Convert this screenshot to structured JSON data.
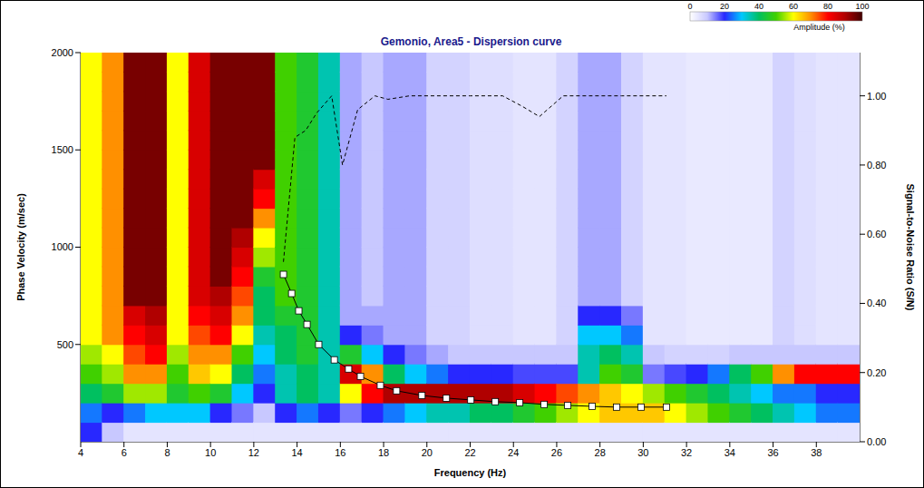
{
  "chart_data": {
    "type": "heatmap",
    "title": "Gemonio, Area5 - Dispersion curve",
    "x_label": "Frequency (Hz)",
    "y_label": "Phase Velocity (m/sec)",
    "y2_label": "Signal-to-Noise Ratio (S/N)",
    "xlim": [
      4,
      40
    ],
    "xticks": [
      4,
      6,
      8,
      10,
      12,
      14,
      16,
      18,
      20,
      22,
      24,
      26,
      28,
      30,
      32,
      34,
      36,
      38
    ],
    "ylim": [
      0,
      2000
    ],
    "yticks": [
      500,
      1000,
      1500,
      2000
    ],
    "y2lim": [
      0,
      1.125
    ],
    "y2ticks": [
      {
        "value": 0,
        "label": "0.00"
      },
      {
        "value": 0.2,
        "label": "0.20"
      },
      {
        "value": 0.4,
        "label": "0.40"
      },
      {
        "value": 0.6,
        "label": "0.60"
      },
      {
        "value": 0.8,
        "label": "0.80"
      },
      {
        "value": 1,
        "label": "1.00"
      }
    ],
    "grid": false,
    "heatmap": {
      "x_edges": [
        4,
        5,
        6,
        7,
        8,
        9,
        10,
        11,
        12,
        13,
        14,
        15,
        16,
        17,
        18,
        19,
        20,
        21,
        22,
        23,
        24,
        25,
        26,
        27,
        28,
        29,
        30,
        31,
        32,
        33,
        34,
        35,
        36,
        37,
        38,
        39,
        40
      ],
      "y_edges": [
        0,
        100,
        200,
        300,
        400,
        500,
        600,
        700,
        800,
        900,
        1000,
        1100,
        1200,
        1300,
        1400,
        1500,
        1600,
        1700,
        1800,
        1900,
        2000
      ],
      "cells": [
        [
          20,
          25,
          40,
          50,
          55,
          60,
          60,
          60,
          60,
          60,
          60,
          60,
          60,
          60,
          60,
          60,
          60,
          60,
          60,
          60
        ],
        [
          10,
          20,
          45,
          55,
          60,
          70,
          70,
          70,
          70,
          70,
          70,
          70,
          70,
          70,
          70,
          70,
          70,
          70,
          70,
          70
        ],
        [
          5,
          25,
          55,
          70,
          75,
          80,
          85,
          95,
          95,
          95,
          95,
          95,
          95,
          95,
          95,
          95,
          95,
          95,
          95,
          95
        ],
        [
          5,
          30,
          55,
          70,
          80,
          85,
          90,
          95,
          95,
          95,
          95,
          95,
          95,
          95,
          95,
          95,
          95,
          95,
          95,
          95
        ],
        [
          5,
          30,
          45,
          50,
          55,
          60,
          60,
          60,
          60,
          60,
          60,
          60,
          60,
          60,
          60,
          60,
          60,
          60,
          60,
          60
        ],
        [
          5,
          30,
          50,
          65,
          70,
          75,
          80,
          85,
          85,
          85,
          85,
          85,
          85,
          85,
          85,
          85,
          85,
          85,
          85,
          85
        ],
        [
          5,
          20,
          45,
          60,
          70,
          80,
          85,
          90,
          95,
          95,
          95,
          95,
          95,
          95,
          95,
          95,
          95,
          95,
          95,
          95
        ],
        [
          5,
          15,
          30,
          40,
          50,
          60,
          70,
          75,
          80,
          85,
          90,
          95,
          95,
          95,
          95,
          95,
          95,
          95,
          95,
          95
        ],
        [
          5,
          10,
          20,
          25,
          30,
          35,
          40,
          40,
          45,
          55,
          60,
          70,
          80,
          85,
          95,
          95,
          95,
          95,
          95,
          95
        ],
        [
          5,
          20,
          35,
          35,
          40,
          40,
          45,
          50,
          50,
          50,
          50,
          50,
          50,
          50,
          50,
          50,
          50,
          50,
          50,
          50
        ],
        [
          5,
          25,
          40,
          40,
          45,
          45,
          45,
          45,
          45,
          45,
          45,
          45,
          45,
          45,
          45,
          45,
          45,
          45,
          45,
          45
        ],
        [
          5,
          20,
          35,
          35,
          35,
          35,
          35,
          35,
          35,
          35,
          35,
          35,
          35,
          35,
          35,
          35,
          35,
          35,
          35,
          35
        ],
        [
          5,
          15,
          60,
          85,
          45,
          20,
          12,
          12,
          12,
          12,
          12,
          12,
          12,
          12,
          12,
          12,
          12,
          12,
          12,
          12
        ],
        [
          5,
          20,
          80,
          70,
          30,
          15,
          12,
          10,
          10,
          10,
          10,
          10,
          10,
          10,
          10,
          10,
          10,
          10,
          10,
          10
        ],
        [
          5,
          25,
          90,
          40,
          20,
          12,
          12,
          12,
          12,
          12,
          12,
          12,
          12,
          12,
          12,
          12,
          12,
          12,
          12,
          12
        ],
        [
          5,
          30,
          90,
          30,
          15,
          12,
          12,
          12,
          12,
          12,
          12,
          12,
          12,
          12,
          12,
          12,
          12,
          12,
          12,
          12
        ],
        [
          5,
          35,
          90,
          25,
          12,
          8,
          8,
          8,
          8,
          8,
          8,
          8,
          8,
          8,
          8,
          8,
          8,
          8,
          8,
          8
        ],
        [
          5,
          35,
          90,
          20,
          10,
          8,
          8,
          8,
          8,
          8,
          8,
          8,
          8,
          8,
          8,
          8,
          8,
          8,
          8,
          8
        ],
        [
          5,
          40,
          90,
          20,
          10,
          6,
          6,
          6,
          6,
          6,
          6,
          6,
          6,
          6,
          6,
          6,
          6,
          6,
          6,
          6
        ],
        [
          5,
          40,
          90,
          20,
          10,
          6,
          6,
          6,
          6,
          6,
          6,
          6,
          6,
          6,
          6,
          6,
          6,
          6,
          6,
          6
        ],
        [
          5,
          45,
          85,
          18,
          10,
          5,
          5,
          5,
          5,
          5,
          5,
          5,
          5,
          5,
          5,
          5,
          5,
          5,
          5,
          5
        ],
        [
          5,
          50,
          80,
          18,
          10,
          5,
          5,
          5,
          5,
          5,
          5,
          5,
          5,
          5,
          5,
          5,
          5,
          5,
          5,
          5
        ],
        [
          5,
          55,
          75,
          18,
          10,
          8,
          8,
          8,
          8,
          8,
          8,
          8,
          8,
          8,
          8,
          8,
          8,
          8,
          8,
          8
        ],
        [
          5,
          60,
          70,
          35,
          35,
          30,
          20,
          12,
          12,
          12,
          12,
          12,
          12,
          12,
          12,
          12,
          12,
          12,
          12,
          12
        ],
        [
          5,
          65,
          65,
          50,
          40,
          30,
          20,
          12,
          12,
          12,
          12,
          12,
          12,
          12,
          12,
          12,
          12,
          12,
          12,
          12
        ],
        [
          5,
          65,
          60,
          45,
          35,
          25,
          15,
          8,
          8,
          8,
          8,
          8,
          8,
          8,
          8,
          8,
          8,
          8,
          8,
          8
        ],
        [
          5,
          65,
          55,
          15,
          10,
          5,
          5,
          5,
          5,
          5,
          5,
          5,
          5,
          5,
          5,
          5,
          5,
          5,
          5,
          5
        ],
        [
          5,
          60,
          50,
          18,
          8,
          5,
          5,
          5,
          5,
          5,
          5,
          5,
          5,
          5,
          5,
          5,
          5,
          5,
          5,
          5
        ],
        [
          5,
          55,
          45,
          20,
          8,
          4,
          4,
          4,
          4,
          4,
          4,
          4,
          4,
          4,
          4,
          4,
          4,
          4,
          4,
          4
        ],
        [
          5,
          50,
          40,
          25,
          8,
          4,
          4,
          4,
          4,
          4,
          4,
          4,
          4,
          4,
          4,
          4,
          4,
          4,
          4,
          4
        ],
        [
          5,
          45,
          35,
          40,
          10,
          4,
          4,
          4,
          4,
          4,
          4,
          4,
          4,
          4,
          4,
          4,
          4,
          4,
          4,
          4
        ],
        [
          5,
          40,
          30,
          50,
          10,
          4,
          4,
          4,
          4,
          4,
          4,
          4,
          4,
          4,
          4,
          4,
          4,
          4,
          4,
          4
        ],
        [
          5,
          35,
          25,
          70,
          10,
          8,
          8,
          8,
          8,
          8,
          8,
          8,
          8,
          8,
          8,
          8,
          8,
          8,
          8,
          8
        ],
        [
          5,
          30,
          25,
          80,
          10,
          6,
          6,
          6,
          6,
          6,
          6,
          6,
          6,
          6,
          6,
          6,
          6,
          6,
          6,
          6
        ],
        [
          5,
          25,
          20,
          80,
          10,
          5,
          5,
          5,
          5,
          5,
          5,
          5,
          5,
          5,
          5,
          5,
          5,
          5,
          5,
          5
        ],
        [
          5,
          25,
          20,
          80,
          10,
          5,
          5,
          5,
          5,
          5,
          5,
          5,
          5,
          5,
          5,
          5,
          5,
          5,
          5,
          5
        ]
      ]
    },
    "colorbar": {
      "range": [
        0,
        100
      ],
      "ticks": [
        0,
        20,
        40,
        60,
        80,
        100
      ],
      "label": "Amplitude (%)"
    },
    "series": [
      {
        "type": "scatter",
        "x": [
          13.37,
          13.75,
          14.08,
          14.46,
          15.0,
          15.72,
          16.38,
          16.93,
          17.85,
          18.6,
          19.77,
          20.9,
          22.03,
          23.16,
          24.29,
          25.42,
          26.51,
          27.64,
          28.77,
          29.9,
          31.07
        ],
        "values": [
          860,
          762,
          673,
          603,
          500,
          421,
          374,
          336,
          290,
          262,
          238,
          224,
          215,
          206,
          201,
          192,
          187,
          182,
          178,
          178,
          178
        ],
        "color": "#ffffff",
        "marker": "square",
        "line_style": "solid"
      },
      {
        "type": "line",
        "x": [
          13.37,
          13.9,
          14.4,
          14.9,
          15.6,
          16.1,
          16.8,
          17.6,
          18.2,
          19.2,
          20.6,
          22.0,
          23.5,
          24.4,
          25.2,
          26.3,
          27.5,
          29.0,
          31.07
        ],
        "values": [
          0.52,
          0.88,
          0.9,
          0.95,
          1.0,
          0.8,
          0.96,
          1.0,
          0.99,
          1.0,
          1.0,
          1.0,
          1.0,
          0.97,
          0.94,
          1.0,
          1.0,
          1.0,
          1.0
        ],
        "color": "#000000",
        "marker": "none",
        "line_style": "dashed",
        "axis": "y2"
      }
    ]
  }
}
